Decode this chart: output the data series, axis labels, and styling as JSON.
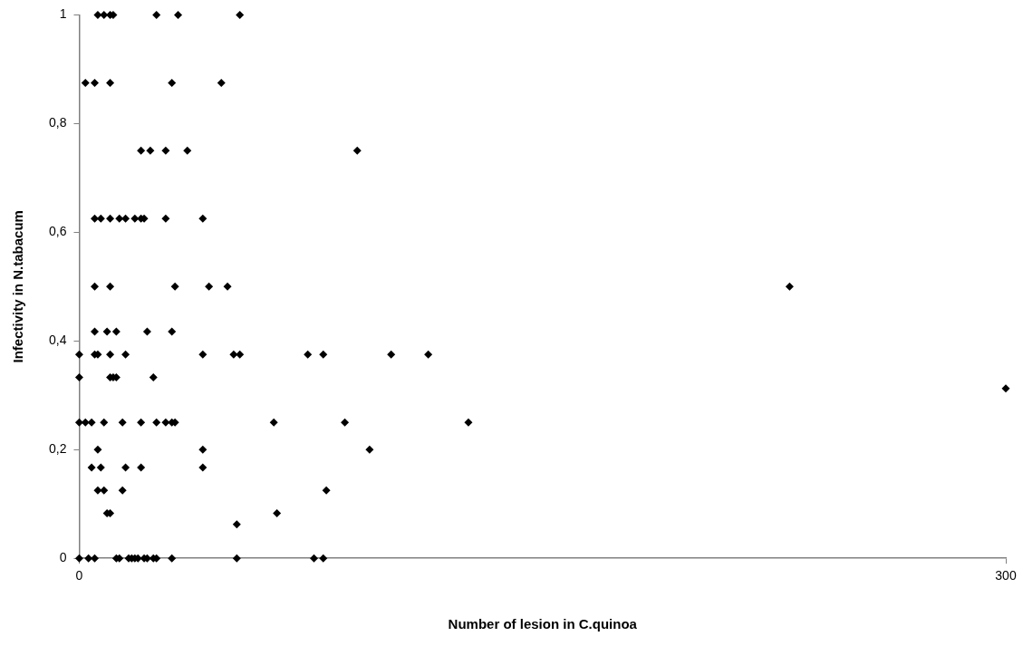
{
  "chart_data": {
    "type": "scatter",
    "xlabel": "Number of lesion in C.quinoa",
    "ylabel": "Infectivity in N.tabacum",
    "xlim": [
      0,
      300
    ],
    "xticks": [
      0,
      300
    ],
    "ylim": [
      0,
      1
    ],
    "yticks": [
      0,
      {
        "value": 0.2,
        "label": "0,2"
      },
      {
        "value": 0.4,
        "label": "0,4"
      },
      {
        "value": 0.6,
        "label": "0,6"
      },
      {
        "value": 0.8,
        "label": "0,8"
      },
      1
    ],
    "grid": false,
    "legend": false,
    "marker": "diamond",
    "series": [
      {
        "color": "#000000",
        "x": [
          6,
          8,
          10,
          11,
          25,
          32,
          52,
          2,
          5,
          10,
          30,
          46,
          20,
          23,
          28,
          35,
          90,
          5,
          7,
          10,
          13,
          15,
          18,
          20,
          21,
          28,
          40,
          5,
          10,
          31,
          42,
          48,
          230,
          5,
          9,
          12,
          22,
          30,
          0,
          5,
          6,
          10,
          15,
          40,
          50,
          52,
          74,
          79,
          101,
          113,
          0,
          10,
          11,
          12,
          24,
          0,
          2,
          4,
          8,
          14,
          20,
          25,
          28,
          30,
          31,
          63,
          86,
          126,
          6,
          40,
          94,
          4,
          7,
          15,
          20,
          40,
          6,
          8,
          14,
          80,
          9,
          10,
          64,
          51,
          0,
          3,
          5,
          12,
          13,
          16,
          17,
          18,
          19,
          21,
          22,
          24,
          25,
          30,
          51,
          76,
          79,
          300
        ],
        "values": [
          1,
          1,
          1,
          1,
          1,
          1,
          1,
          0.875,
          0.875,
          0.875,
          0.875,
          0.875,
          0.75,
          0.75,
          0.75,
          0.75,
          0.75,
          0.625,
          0.625,
          0.625,
          0.625,
          0.625,
          0.625,
          0.625,
          0.625,
          0.625,
          0.625,
          0.5,
          0.5,
          0.5,
          0.5,
          0.5,
          0.5,
          0.417,
          0.417,
          0.417,
          0.417,
          0.417,
          0.375,
          0.375,
          0.375,
          0.375,
          0.375,
          0.375,
          0.375,
          0.375,
          0.375,
          0.375,
          0.375,
          0.375,
          0.333,
          0.333,
          0.333,
          0.333,
          0.333,
          0.25,
          0.25,
          0.25,
          0.25,
          0.25,
          0.25,
          0.25,
          0.25,
          0.25,
          0.25,
          0.25,
          0.25,
          0.25,
          0.2,
          0.2,
          0.2,
          0.167,
          0.167,
          0.167,
          0.167,
          0.167,
          0.125,
          0.125,
          0.125,
          0.125,
          0.083,
          0.083,
          0.083,
          0.0625,
          0,
          0,
          0,
          0,
          0,
          0,
          0,
          0,
          0,
          0,
          0,
          0,
          0,
          0,
          0,
          0,
          0,
          0.3125
        ]
      }
    ]
  }
}
